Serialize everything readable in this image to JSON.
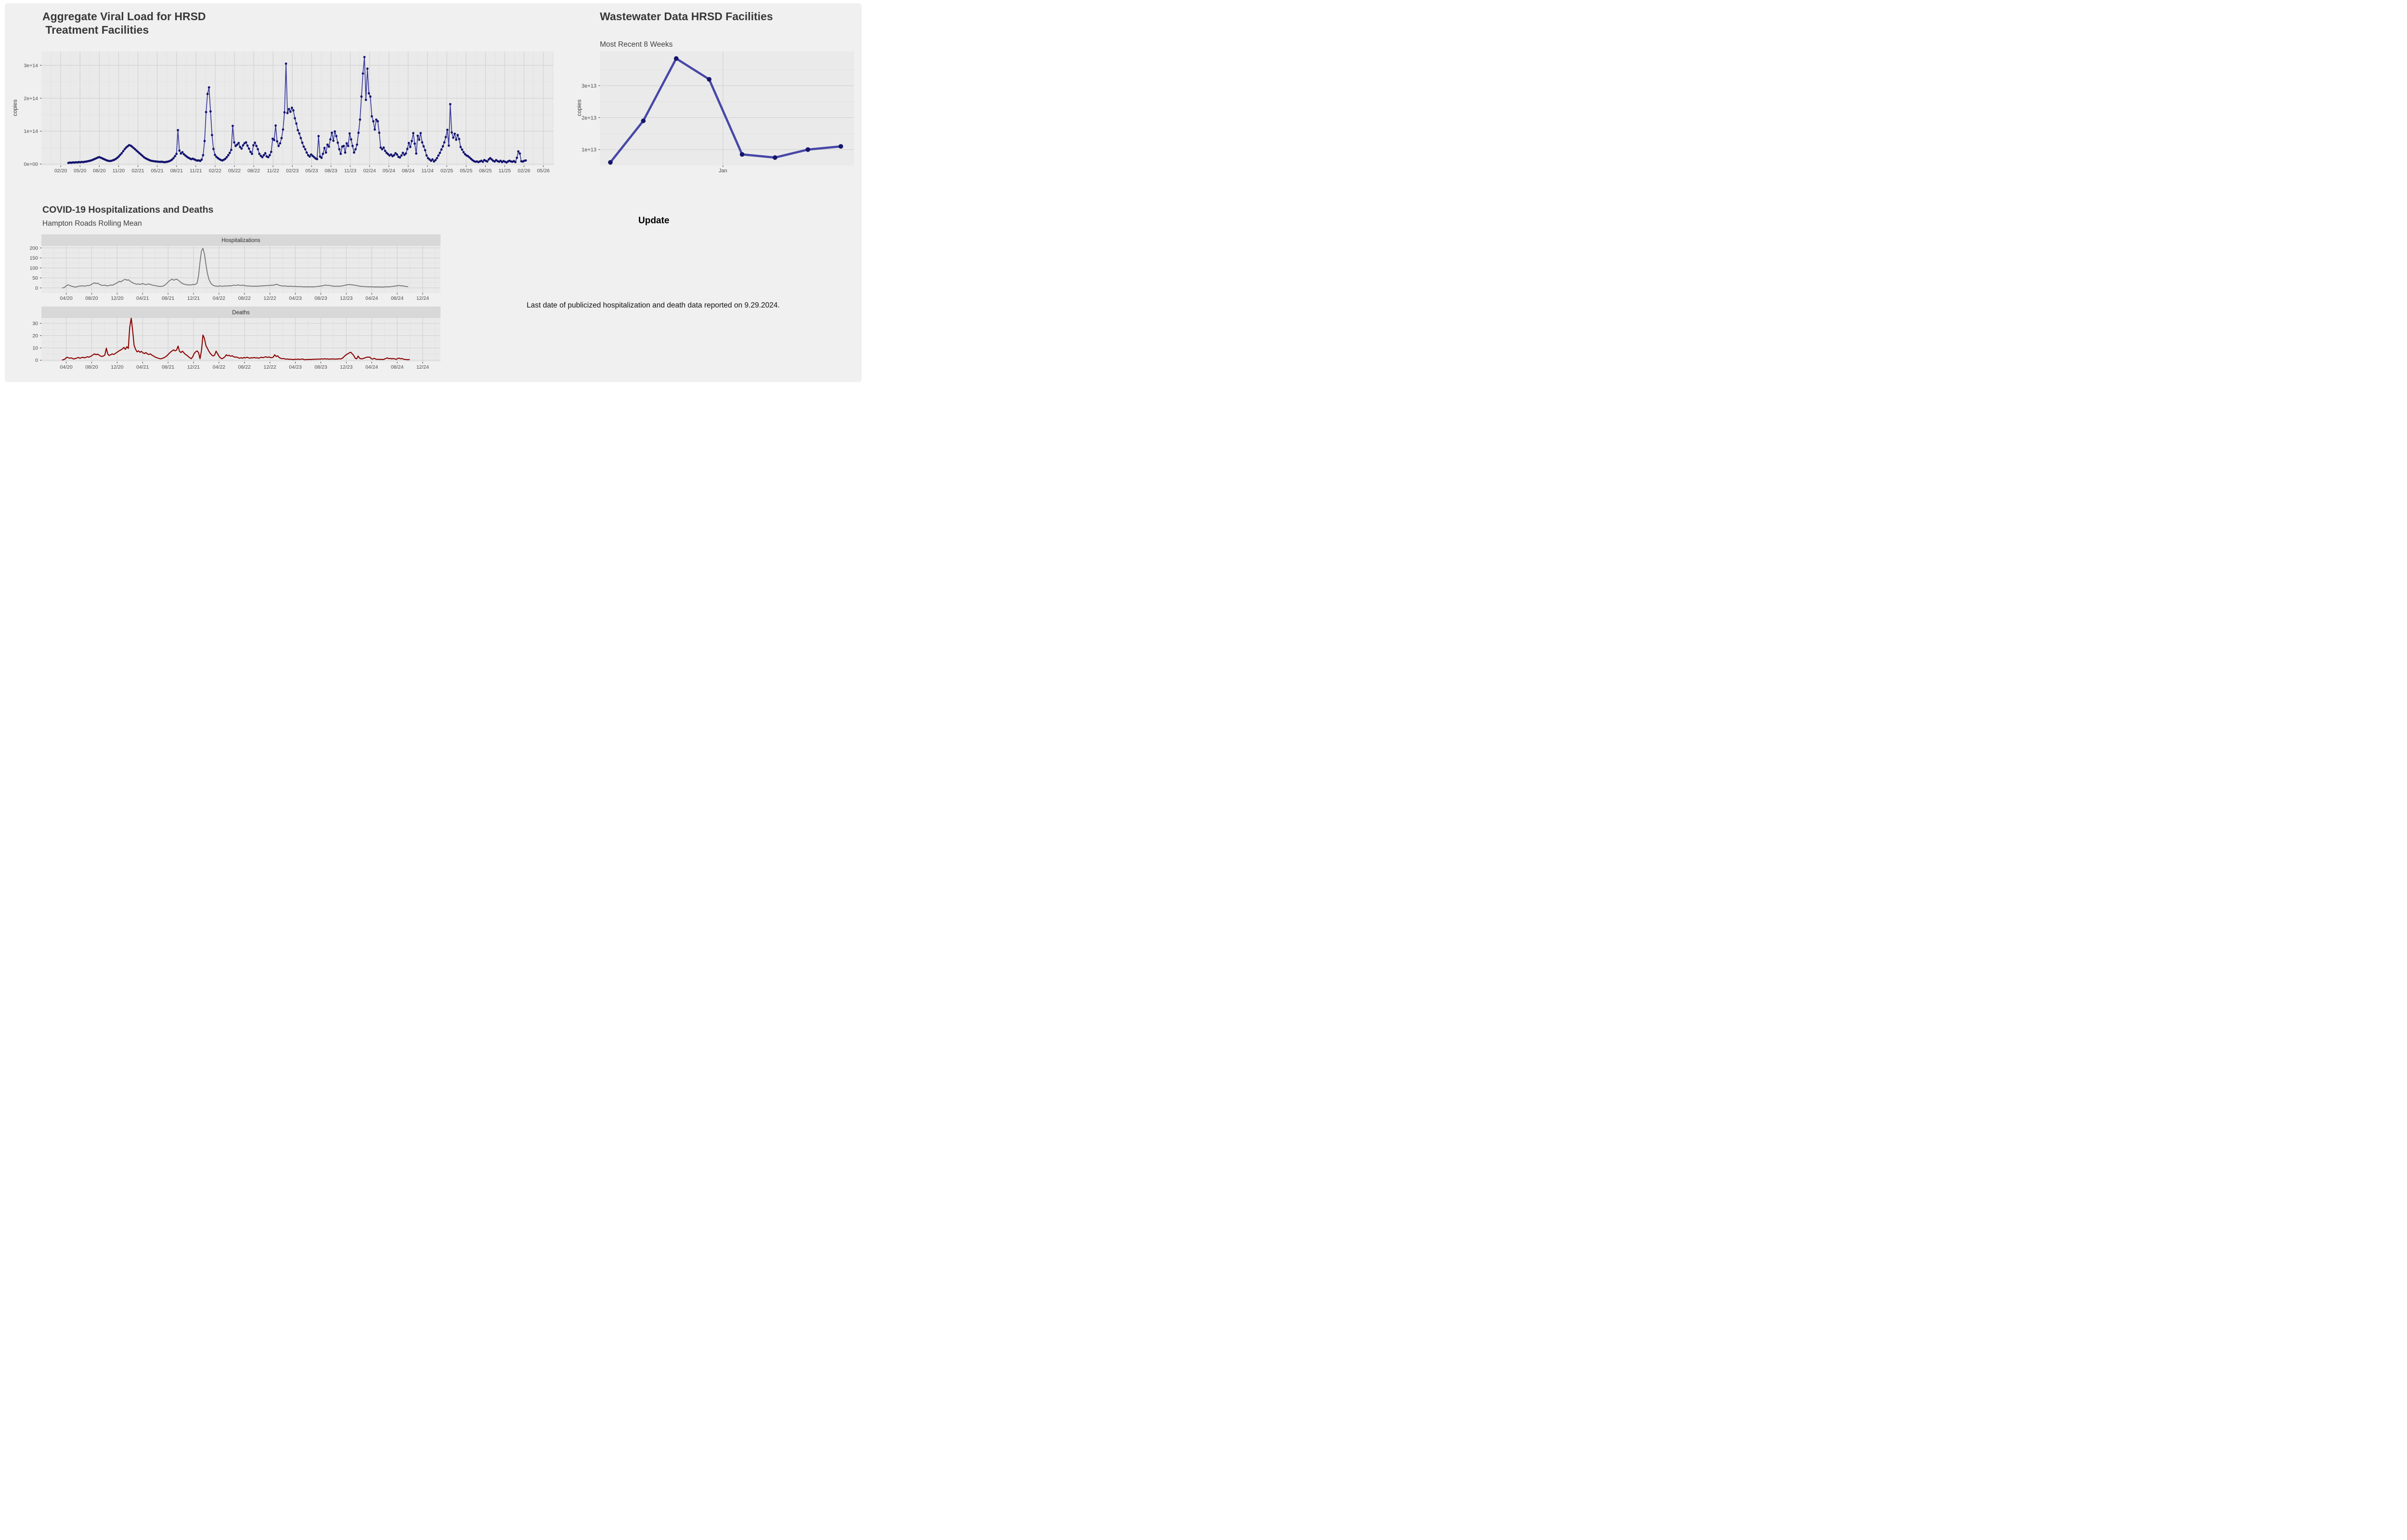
{
  "window": {
    "background": "#ffffff",
    "card_background": "#f0f0f0"
  },
  "theme": {
    "panel_bg": "#eaeaea",
    "grid_major": "#d2d2d2",
    "grid_minor": "#dfdfdf",
    "axis_text": "#4a4a4a",
    "tick_mark": "#333333",
    "strip_bg": "#d8d8d8",
    "strip_text": "#2b2b2b"
  },
  "texts": {
    "update_label": "Update",
    "data_note": "Last date of publicized hospitalization and death data reported on 9.29.2024."
  },
  "chart_data": [
    {
      "id": "viral_load",
      "type": "line",
      "title_line1": "Aggregate Viral Load for HRSD",
      "title_line2": " Treatment Facilities",
      "ylabel": "copies",
      "unit": "values in 1e13 copies, weekly samples",
      "x_tick_labels": [
        "02/20",
        "05/20",
        "08/20",
        "11/20",
        "02/21",
        "05/21",
        "08/21",
        "11/21",
        "02/22",
        "05/22",
        "08/22",
        "11/22",
        "02/23",
        "05/23",
        "08/23",
        "11/23",
        "02/24",
        "05/24",
        "08/24",
        "11/24",
        "02/25",
        "05/25",
        "08/25",
        "11/25",
        "02/26",
        "05/26"
      ],
      "x_tick_months": [
        0,
        3,
        6,
        9,
        12,
        15,
        18,
        21,
        24,
        27,
        30,
        33,
        36,
        39,
        42,
        45,
        48,
        51,
        54,
        57,
        60,
        63,
        66,
        69,
        72,
        75
      ],
      "x_domain": [
        -3.0,
        76.6
      ],
      "y_tick_labels": [
        "0e+00",
        "1e+14",
        "2e+14",
        "3e+14"
      ],
      "y_major": [
        0,
        10,
        20,
        30
      ],
      "y_minor": [
        5,
        15,
        25
      ],
      "y_domain": [
        -0.45,
        34.2
      ],
      "data_start_month": 1.2,
      "month_step": 0.23,
      "line_color": "#3a3a9e",
      "point_color": "#12126e",
      "values": [
        0.35,
        0.45,
        0.4,
        0.5,
        0.45,
        0.55,
        0.5,
        0.6,
        0.55,
        0.65,
        0.6,
        0.7,
        0.75,
        0.85,
        0.95,
        1.05,
        1.2,
        1.4,
        1.6,
        1.8,
        2.0,
        2.1,
        1.9,
        1.7,
        1.5,
        1.3,
        1.1,
        1.0,
        0.92,
        1.0,
        1.15,
        1.3,
        1.55,
        1.9,
        2.3,
        2.8,
        3.3,
        3.9,
        4.5,
        5.0,
        5.4,
        5.75,
        5.6,
        5.3,
        4.9,
        4.5,
        4.1,
        3.7,
        3.3,
        2.9,
        2.5,
        2.1,
        1.8,
        1.55,
        1.35,
        1.15,
        1.0,
        0.92,
        0.85,
        0.8,
        0.75,
        0.7,
        0.66,
        0.72,
        0.62,
        0.58,
        0.64,
        0.72,
        0.85,
        1.05,
        1.35,
        1.8,
        2.4,
        3.1,
        10.3,
        4.1,
        3.2,
        3.6,
        3.0,
        2.6,
        2.25,
        1.95,
        1.7,
        1.5,
        1.62,
        1.42,
        1.22,
        1.05,
        1.12,
        0.95,
        1.35,
        2.7,
        7.0,
        15.8,
        21.3,
        23.3,
        16.0,
        8.8,
        4.6,
        2.8,
        2.2,
        1.8,
        1.5,
        1.25,
        1.1,
        1.3,
        1.6,
        2.1,
        2.7,
        3.4,
        4.3,
        11.6,
        6.6,
        5.5,
        5.9,
        6.4,
        5.2,
        4.7,
        5.7,
        6.3,
        6.6,
        5.6,
        4.7,
        3.7,
        3.1,
        5.7,
        6.5,
        5.5,
        4.5,
        3.1,
        2.5,
        2.1,
        2.7,
        3.3,
        2.3,
        2.1,
        2.7,
        3.7,
        7.7,
        7.3,
        11.7,
        6.9,
        5.5,
        6.3,
        7.9,
        10.5,
        15.7,
        30.5,
        15.5,
        16.7,
        15.9,
        17.1,
        16.3,
        13.9,
        12.3,
        10.3,
        9.3,
        7.9,
        6.5,
        5.3,
        4.5,
        3.5,
        2.7,
        2.3,
        2.9,
        2.5,
        2.1,
        1.7,
        1.5,
        8.5,
        2.3,
        1.9,
        3.1,
        4.9,
        3.5,
        5.9,
        5.3,
        7.5,
        9.5,
        7.1,
        9.9,
        8.5,
        6.5,
        4.5,
        3.1,
        5.3,
        5.5,
        3.5,
        6.3,
        5.5,
        9.3,
        7.5,
        5.5,
        3.5,
        4.5,
        5.9,
        9.5,
        13.5,
        20.5,
        27.5,
        32.5,
        19.5,
        29.0,
        21.5,
        20.5,
        14.5,
        13.0,
        10.5,
        13.5,
        13.0,
        9.5,
        5.0,
        4.5,
        5.0,
        4.0,
        3.4,
        3.0,
        2.6,
        2.9,
        2.4,
        2.7,
        3.3,
        2.9,
        2.2,
        2.0,
        2.6,
        3.4,
        2.8,
        3.2,
        4.6,
        6.4,
        5.2,
        7.0,
        9.4,
        6.2,
        3.2,
        8.6,
        7.4,
        9.4,
        6.6,
        5.4,
        4.2,
        2.6,
        1.8,
        1.4,
        1.0,
        1.4,
        0.8,
        1.2,
        1.8,
        2.6,
        3.4,
        4.4,
        5.4,
        6.6,
        8.2,
        10.4,
        5.6,
        18.2,
        9.6,
        8.0,
        9.2,
        7.4,
        8.8,
        7.6,
        5.2,
        4.4,
        3.6,
        3.0,
        2.6,
        2.4,
        2.0,
        1.6,
        1.2,
        0.9,
        0.7,
        0.8,
        0.6,
        0.8,
        1.0,
        0.7,
        1.2,
        1.0,
        0.8,
        1.4,
        1.8,
        1.4,
        1.0,
        0.8,
        1.2,
        0.9,
        0.7,
        1.0,
        0.6,
        0.9,
        0.7,
        0.5,
        0.8,
        1.0,
        0.8,
        0.7,
        0.9,
        0.6,
        1.9,
        3.85,
        3.2,
        0.85,
        0.75,
        1.0,
        1.1
      ]
    },
    {
      "id": "recent_8_weeks",
      "type": "line",
      "title": "Wastewater Data HRSD Facilities",
      "subtitle": "Most Recent 8 Weeks",
      "ylabel": "copies",
      "unit": "values in 1e13 copies, 8 weekly samples",
      "x_tick_labels": [
        "Jan"
      ],
      "x_tick_months": [
        3.42
      ],
      "x_domain": [
        -0.32,
        7.4
      ],
      "y_tick_labels": [
        "1e+13",
        "2e+13",
        "3e+13"
      ],
      "y_major": [
        1,
        2,
        3
      ],
      "y_minor": [
        1.5,
        2.5,
        3.5
      ],
      "y_domain": [
        0.5,
        4.07
      ],
      "data_start_month": 0,
      "month_step": 1,
      "line_color": "#4747a8",
      "point_color": "#15156b",
      "values": [
        0.6,
        1.9,
        3.85,
        3.2,
        0.85,
        0.75,
        1.0,
        1.1
      ]
    },
    {
      "id": "hospitalizations",
      "type": "line",
      "title": "COVID-19 Hospitalizations and Deaths",
      "subtitle": "Hampton Roads Rolling Mean",
      "facet_label": "Hospitalizations",
      "unit": "daily rolling mean, weekly points",
      "x_tick_labels": [
        "04/20",
        "08/20",
        "12/20",
        "04/21",
        "08/21",
        "12/21",
        "04/22",
        "08/22",
        "12/22",
        "04/23",
        "08/23",
        "12/23",
        "04/24",
        "08/24",
        "12/24"
      ],
      "x_tick_months": [
        0,
        4,
        8,
        12,
        16,
        20,
        24,
        28,
        32,
        36,
        40,
        44,
        48,
        52,
        56
      ],
      "x_domain": [
        -3.9,
        58.8
      ],
      "y_tick_labels": [
        "0",
        "50",
        "100",
        "150",
        "200"
      ],
      "y_major": [
        0,
        50,
        100,
        150,
        200
      ],
      "y_minor": [
        25,
        75,
        125,
        175
      ],
      "y_domain": [
        -26,
        210
      ],
      "data_start_month": -0.6,
      "month_step": 0.23,
      "line_color": "#6f6f6f",
      "point_color": "#6f6f6f",
      "values": [
        0,
        1,
        6,
        13,
        15,
        12,
        9,
        7,
        5,
        4,
        6,
        8,
        10,
        9,
        11,
        8,
        10,
        12,
        11,
        14,
        18,
        22,
        26,
        21,
        24,
        19,
        15,
        13,
        12,
        14,
        11,
        10,
        12,
        15,
        13,
        16,
        20,
        24,
        28,
        33,
        30,
        36,
        40,
        43,
        38,
        41,
        35,
        30,
        26,
        22,
        20,
        18,
        20,
        17,
        19,
        22,
        18,
        16,
        18,
        20,
        17,
        15,
        13,
        12,
        10,
        9,
        8,
        7,
        8,
        10,
        14,
        20,
        28,
        35,
        40,
        44,
        38,
        42,
        44,
        39,
        33,
        27,
        22,
        19,
        17,
        15,
        16,
        14,
        15,
        17,
        16,
        18,
        24,
        60,
        130,
        185,
        198,
        170,
        120,
        75,
        45,
        28,
        18,
        13,
        10,
        9,
        8,
        9,
        10,
        8,
        9,
        10,
        9,
        10,
        11,
        10,
        12,
        14,
        12,
        13,
        15,
        13,
        12,
        14,
        12,
        11,
        10,
        9,
        10,
        8,
        9,
        8,
        9,
        8,
        9,
        10,
        9,
        11,
        10,
        12,
        11,
        13,
        12,
        14,
        13,
        15,
        18,
        16,
        13,
        11,
        10,
        9,
        10,
        9,
        8,
        8,
        9,
        8,
        7,
        8,
        7,
        6,
        7,
        6,
        6,
        5,
        6,
        5,
        5,
        6,
        5,
        5,
        6,
        6,
        7,
        8,
        9,
        10,
        11,
        13,
        14,
        12,
        13,
        11,
        10,
        9,
        8,
        8,
        9,
        8,
        9,
        10,
        11,
        13,
        15,
        16,
        17,
        16,
        15,
        14,
        13,
        12,
        10,
        9,
        8,
        7,
        7,
        6,
        6,
        5,
        6,
        5,
        5,
        5,
        4,
        5,
        4,
        5,
        4,
        4,
        5,
        5,
        6,
        5,
        6,
        7,
        8,
        9,
        10,
        11,
        12,
        10,
        11,
        9,
        8,
        7,
        6
      ]
    },
    {
      "id": "deaths",
      "type": "line",
      "facet_label": "Deaths",
      "unit": "daily rolling mean, weekly points",
      "x_tick_labels": [
        "04/20",
        "08/20",
        "12/20",
        "04/21",
        "08/21",
        "12/21",
        "04/22",
        "08/22",
        "12/22",
        "04/23",
        "08/23",
        "12/23",
        "04/24",
        "08/24",
        "12/24"
      ],
      "x_tick_months": [
        0,
        4,
        8,
        12,
        16,
        20,
        24,
        28,
        32,
        36,
        40,
        44,
        48,
        52,
        56
      ],
      "x_domain": [
        -3.9,
        58.8
      ],
      "y_tick_labels": [
        "0",
        "10",
        "20",
        "30"
      ],
      "y_major": [
        0,
        10,
        20,
        30
      ],
      "y_minor": [
        5,
        15,
        25
      ],
      "y_domain": [
        -1.4,
        34.3
      ],
      "data_start_month": -0.6,
      "month_step": 0.23,
      "line_color": "#8b0000",
      "point_color": "#8b0000",
      "values": [
        0.2,
        0.5,
        1.2,
        2.4,
        2.0,
        1.6,
        1.9,
        1.3,
        1.0,
        1.4,
        1.8,
        2.2,
        1.6,
        2.0,
        2.4,
        1.9,
        2.3,
        2.8,
        2.4,
        3.0,
        3.6,
        4.4,
        5.2,
        4.4,
        5.0,
        4.2,
        3.4,
        3.0,
        3.4,
        4.2,
        9.8,
        5.0,
        3.8,
        4.4,
        5.2,
        4.6,
        5.4,
        6.2,
        7.0,
        7.8,
        8.4,
        9.2,
        10.4,
        8.8,
        11.0,
        9.6,
        27.0,
        34.2,
        24.0,
        12.0,
        8.8,
        6.8,
        7.6,
        6.4,
        7.2,
        6.0,
        5.4,
        6.2,
        5.2,
        4.6,
        5.2,
        4.2,
        3.6,
        2.8,
        2.2,
        1.8,
        1.4,
        1.1,
        1.4,
        1.8,
        2.4,
        3.2,
        4.4,
        5.6,
        6.8,
        7.6,
        8.4,
        7.6,
        8.2,
        11.5,
        7.2,
        6.2,
        7.4,
        6.0,
        4.8,
        4.0,
        3.0,
        2.0,
        1.2,
        2.8,
        5.4,
        6.8,
        7.6,
        6.2,
        1.2,
        7.8,
        20.5,
        17.8,
        12.0,
        9.8,
        7.4,
        5.6,
        4.2,
        3.4,
        4.2,
        7.4,
        5.2,
        3.2,
        1.8,
        1.2,
        1.8,
        2.8,
        4.4,
        3.6,
        4.0,
        3.2,
        3.6,
        2.8,
        2.4,
        2.6,
        2.0,
        1.6,
        2.0,
        1.6,
        2.2,
        1.8,
        2.4,
        2.0,
        1.6,
        2.0,
        1.8,
        2.2,
        1.8,
        2.0,
        1.6,
        2.0,
        2.4,
        2.0,
        2.4,
        2.8,
        2.2,
        2.6,
        2.2,
        2.0,
        2.4,
        4.4,
        3.0,
        3.6,
        2.2,
        1.6,
        1.2,
        1.4,
        1.0,
        0.8,
        1.0,
        0.6,
        0.8,
        0.6,
        0.5,
        0.8,
        0.6,
        0.9,
        0.6,
        0.8,
        1.0,
        0.5,
        0.4,
        0.6,
        0.5,
        0.7,
        0.5,
        0.8,
        0.6,
        0.9,
        0.7,
        1.0,
        0.8,
        1.1,
        0.9,
        1.2,
        0.9,
        1.1,
        0.8,
        1.0,
        0.9,
        1.1,
        0.8,
        1.0,
        0.9,
        1.2,
        1.0,
        1.4,
        2.4,
        3.6,
        4.6,
        5.2,
        6.0,
        6.5,
        5.2,
        3.8,
        1.6,
        1.1,
        3.4,
        1.6,
        1.1,
        1.2,
        1.6,
        2.0,
        2.5,
        2.5,
        2.5,
        1.2,
        0.9,
        1.5,
        0.9,
        0.6,
        0.8,
        0.5,
        0.7,
        0.5,
        0.9,
        1.4,
        1.9,
        1.2,
        1.5,
        1.0,
        1.4,
        1.0,
        0.7,
        1.3,
        1.7,
        1.1,
        1.4,
        0.8,
        0.6,
        0.5,
        0.4,
        0.5
      ]
    }
  ]
}
